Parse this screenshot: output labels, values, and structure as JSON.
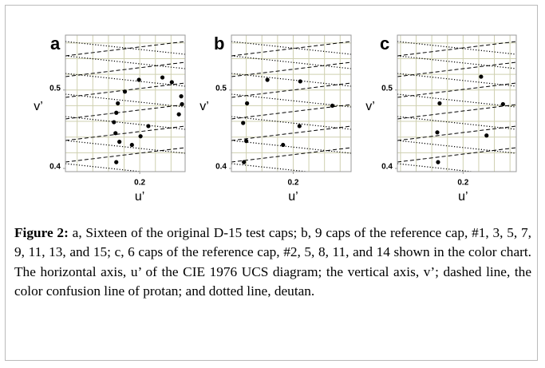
{
  "chart_data": [
    {
      "type": "scatter",
      "label": "a",
      "xlabel": "u’",
      "ylabel": "v’",
      "xlim": [
        0.105,
        0.258
      ],
      "ylim": [
        0.4,
        0.57
      ],
      "xticks": [
        0.2
      ],
      "yticks": [
        0.4,
        0.5
      ],
      "xgrid": [
        0.12,
        0.14,
        0.16,
        0.18,
        0.2,
        0.22,
        0.24
      ],
      "ygrid": [
        0.42,
        0.44,
        0.46,
        0.48,
        0.5,
        0.52,
        0.54,
        0.56
      ],
      "color": "#000000",
      "x": [
        0.199,
        0.229,
        0.241,
        0.181,
        0.253,
        0.172,
        0.254,
        0.17,
        0.25,
        0.167,
        0.211,
        0.169,
        0.201,
        0.174,
        0.19,
        0.17
      ],
      "values": [
        0.513,
        0.516,
        0.51,
        0.498,
        0.492,
        0.483,
        0.482,
        0.471,
        0.469,
        0.459,
        0.454,
        0.445,
        0.441,
        0.434,
        0.43,
        0.408
      ]
    },
    {
      "type": "scatter",
      "label": "b",
      "xlabel": "u’",
      "ylabel": "v’",
      "xlim": [
        0.121,
        0.274
      ],
      "ylim": [
        0.4,
        0.57
      ],
      "xticks": [
        0.2
      ],
      "yticks": [
        0.4,
        0.5
      ],
      "xgrid": [
        0.14,
        0.16,
        0.18,
        0.2,
        0.22,
        0.24,
        0.26
      ],
      "ygrid": [
        0.42,
        0.44,
        0.46,
        0.48,
        0.5,
        0.52,
        0.54,
        0.56
      ],
      "color": "#000000",
      "x": [
        0.167,
        0.209,
        0.141,
        0.25,
        0.136,
        0.208,
        0.14,
        0.187,
        0.137
      ],
      "values": [
        0.513,
        0.511,
        0.483,
        0.48,
        0.458,
        0.454,
        0.435,
        0.43,
        0.408
      ]
    },
    {
      "type": "scatter",
      "label": "c",
      "xlabel": "u’",
      "ylabel": "v’",
      "xlim": [
        0.116,
        0.268
      ],
      "ylim": [
        0.4,
        0.57
      ],
      "xticks": [
        0.2
      ],
      "yticks": [
        0.4,
        0.5
      ],
      "xgrid": [
        0.12,
        0.14,
        0.16,
        0.18,
        0.2,
        0.22,
        0.24,
        0.26
      ],
      "ygrid": [
        0.42,
        0.44,
        0.46,
        0.48,
        0.5,
        0.52,
        0.54,
        0.56
      ],
      "color": "#000000",
      "x": [
        0.17,
        0.223,
        0.251,
        0.167,
        0.23,
        0.168
      ],
      "values": [
        0.483,
        0.517,
        0.482,
        0.446,
        0.442,
        0.408
      ]
    }
  ],
  "caption": {
    "label": "Figure 2:",
    "text": " a, Sixteen of the original D-15 test caps; b, 9 caps of the reference cap, #1, 3, 5, 7, 9, 11, 13, and 15; c, 6 caps of the reference cap, #2, 5, 8, 11, and 14 shown in the color chart. The horizontal axis, u’ of the CIE 1976 UCS diagram; the vertical axis, v’; dashed line, the color confusion line of protan; and dotted line, deutan."
  }
}
